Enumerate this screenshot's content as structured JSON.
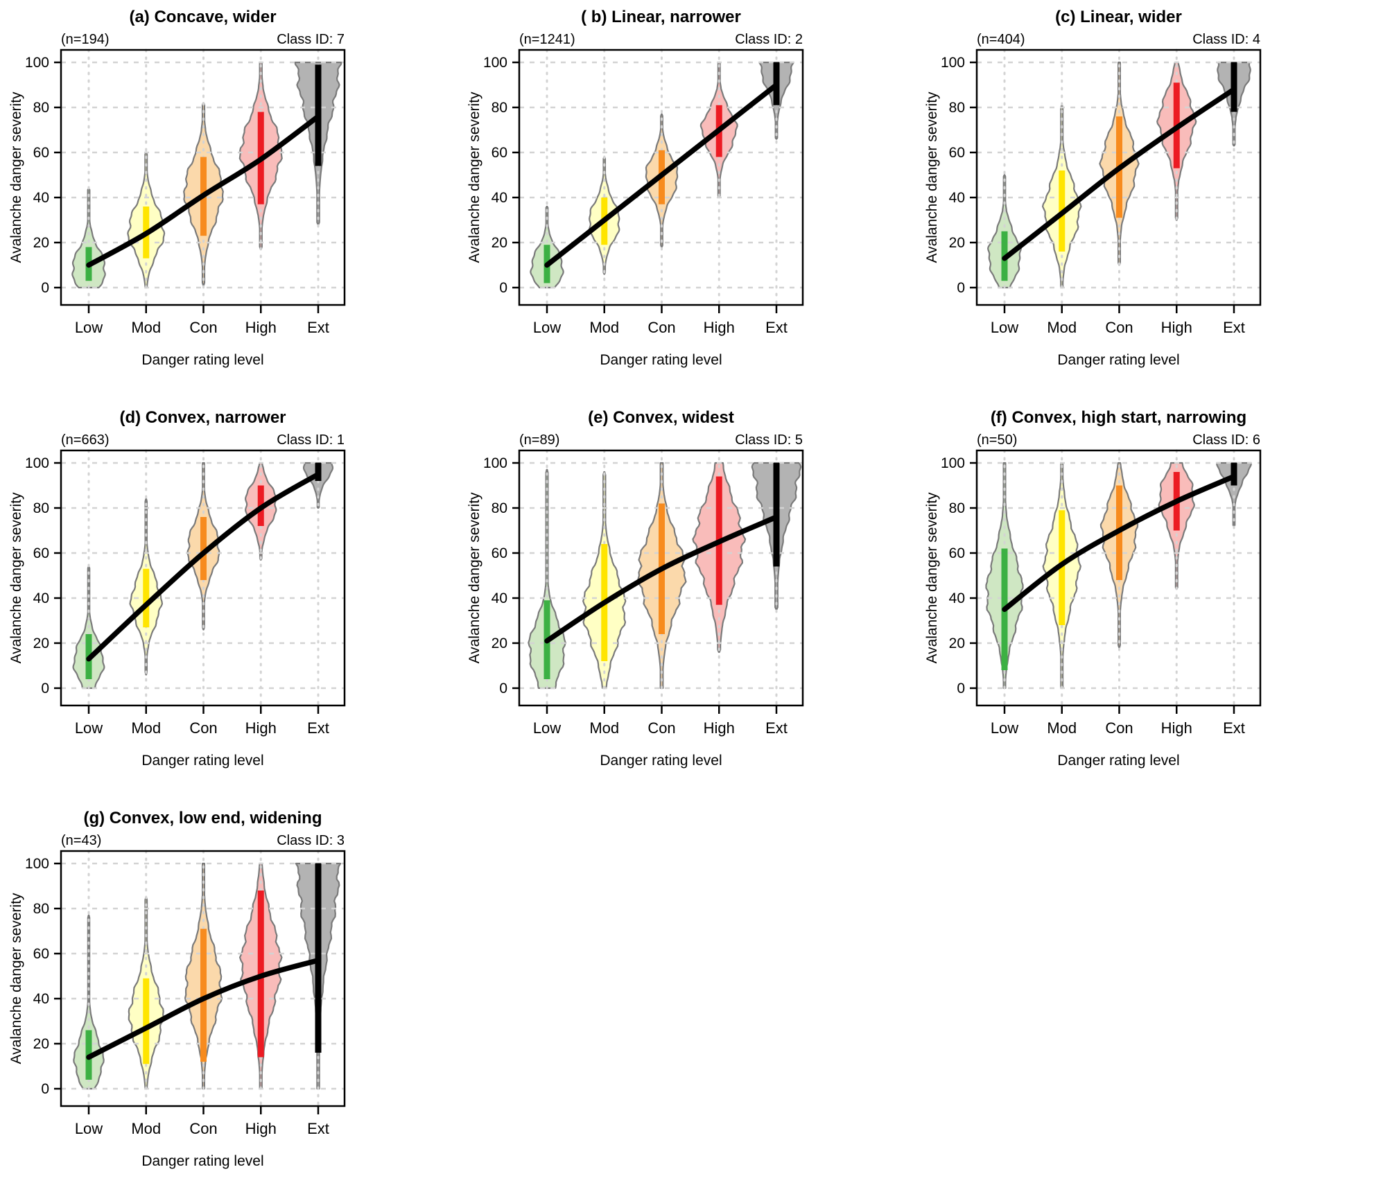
{
  "figure": {
    "x_axis_label": "Danger rating level",
    "y_axis_label": "Avalanche danger severity",
    "categories": [
      "Low",
      "Mod",
      "Con",
      "High",
      "Ext"
    ],
    "y_ticks": [
      0,
      20,
      40,
      60,
      80,
      100
    ],
    "colors": {
      "fills": [
        "#cfe7c3",
        "#ffffc4",
        "#fbd9ab",
        "#f9bcba",
        "#b3b3b3"
      ],
      "bars": [
        "#3cb043",
        "#ffe500",
        "#f78b1e",
        "#ec1b23",
        "#000000"
      ],
      "violin_border": "#7a7a7a",
      "grid": "#d3d3d3",
      "trend": "#000000",
      "box": "#000000",
      "text": "#000000"
    }
  },
  "chart_data": [
    {
      "type": "violin",
      "title": "(a) Concave, wider",
      "n_label": "(n=194)",
      "class_label": "Class ID: 7",
      "n": 194,
      "class_id": 7,
      "categories": [
        "Low",
        "Mod",
        "Con",
        "High",
        "Ext"
      ],
      "means": [
        10,
        24,
        41,
        57,
        76
      ],
      "bar_ranges": [
        [
          3,
          18
        ],
        [
          13,
          36
        ],
        [
          23,
          58
        ],
        [
          37,
          78
        ],
        [
          54,
          99
        ]
      ],
      "violins": [
        {
          "min": 0,
          "max": 44,
          "peak": 8,
          "sd_below": 8,
          "sd_above": 9,
          "width": 0.58
        },
        {
          "min": 0,
          "max": 60,
          "peak": 25,
          "sd_below": 10,
          "sd_above": 11,
          "width": 0.62
        },
        {
          "min": 1,
          "max": 82,
          "peak": 43,
          "sd_below": 14,
          "sd_above": 13,
          "width": 0.66
        },
        {
          "min": 17,
          "max": 100,
          "peak": 60,
          "sd_below": 14,
          "sd_above": 14,
          "width": 0.7
        },
        {
          "min": 28,
          "max": 100,
          "peak": 100,
          "sd_below": 24,
          "sd_above": 24,
          "width": 0.74
        }
      ]
    },
    {
      "type": "violin",
      "title": "( b) Linear, narrower",
      "n_label": "(n=1241)",
      "class_label": "Class ID: 2",
      "n": 1241,
      "class_id": 2,
      "categories": [
        "Low",
        "Mod",
        "Con",
        "High",
        "Ext"
      ],
      "means": [
        10,
        30,
        50,
        70,
        90
      ],
      "bar_ranges": [
        [
          2,
          19
        ],
        [
          19,
          40
        ],
        [
          37,
          61
        ],
        [
          58,
          81
        ],
        [
          81,
          100
        ]
      ],
      "violins": [
        {
          "min": 0,
          "max": 36,
          "peak": 9,
          "sd_below": 8,
          "sd_above": 8,
          "width": 0.56
        },
        {
          "min": 6,
          "max": 58,
          "peak": 29,
          "sd_below": 8,
          "sd_above": 9,
          "width": 0.54
        },
        {
          "min": 18,
          "max": 77,
          "peak": 49,
          "sd_below": 9,
          "sd_above": 9,
          "width": 0.56
        },
        {
          "min": 40,
          "max": 100,
          "peak": 70,
          "sd_below": 9,
          "sd_above": 9,
          "width": 0.6
        },
        {
          "min": 66,
          "max": 100,
          "peak": 100,
          "sd_below": 11,
          "sd_above": 11,
          "width": 0.58
        }
      ]
    },
    {
      "type": "violin",
      "title": "(c) Linear, wider",
      "n_label": "(n=404)",
      "class_label": "Class ID: 4",
      "n": 404,
      "class_id": 4,
      "categories": [
        "Low",
        "Mod",
        "Con",
        "High",
        "Ext"
      ],
      "means": [
        13,
        33,
        53,
        71,
        88
      ],
      "bar_ranges": [
        [
          3,
          25
        ],
        [
          16,
          52
        ],
        [
          31,
          76
        ],
        [
          53,
          91
        ],
        [
          78,
          100
        ]
      ],
      "violins": [
        {
          "min": 0,
          "max": 50,
          "peak": 14,
          "sd_below": 10,
          "sd_above": 10,
          "width": 0.56
        },
        {
          "min": 0,
          "max": 81,
          "peak": 34,
          "sd_below": 13,
          "sd_above": 13,
          "width": 0.62
        },
        {
          "min": 10,
          "max": 100,
          "peak": 55,
          "sd_below": 14,
          "sd_above": 13,
          "width": 0.62
        },
        {
          "min": 30,
          "max": 100,
          "peak": 74,
          "sd_below": 13,
          "sd_above": 12,
          "width": 0.62
        },
        {
          "min": 63,
          "max": 100,
          "peak": 100,
          "sd_below": 12,
          "sd_above": 12,
          "width": 0.6
        }
      ]
    },
    {
      "type": "violin",
      "title": "(d) Convex, narrower",
      "n_label": "(n=663)",
      "class_label": "Class ID: 1",
      "n": 663,
      "class_id": 1,
      "categories": [
        "Low",
        "Mod",
        "Con",
        "High",
        "Ext"
      ],
      "means": [
        13,
        37,
        60,
        80,
        95
      ],
      "bar_ranges": [
        [
          4,
          24
        ],
        [
          27,
          53
        ],
        [
          48,
          76
        ],
        [
          72,
          90
        ],
        [
          92,
          100
        ]
      ],
      "violins": [
        {
          "min": 0,
          "max": 54,
          "peak": 12,
          "sd_below": 9,
          "sd_above": 9,
          "width": 0.52
        },
        {
          "min": 6,
          "max": 84,
          "peak": 38,
          "sd_below": 10,
          "sd_above": 11,
          "width": 0.52
        },
        {
          "min": 26,
          "max": 100,
          "peak": 62,
          "sd_below": 10,
          "sd_above": 11,
          "width": 0.55
        },
        {
          "min": 57,
          "max": 100,
          "peak": 82,
          "sd_below": 9,
          "sd_above": 8,
          "width": 0.55
        },
        {
          "min": 80,
          "max": 100,
          "peak": 100,
          "sd_below": 7,
          "sd_above": 7,
          "width": 0.52
        }
      ]
    },
    {
      "type": "violin",
      "title": "(e) Convex, widest",
      "n_label": "(n=89)",
      "class_label": "Class ID: 5",
      "n": 89,
      "class_id": 5,
      "categories": [
        "Low",
        "Mod",
        "Con",
        "High",
        "Ext"
      ],
      "means": [
        21,
        38,
        53,
        65,
        76
      ],
      "bar_ranges": [
        [
          4,
          39
        ],
        [
          12,
          64
        ],
        [
          24,
          82
        ],
        [
          37,
          94
        ],
        [
          54,
          100
        ]
      ],
      "violins": [
        {
          "min": 0,
          "max": 97,
          "peak": 18,
          "sd_below": 14,
          "sd_above": 12,
          "width": 0.62
        },
        {
          "min": 0,
          "max": 96,
          "peak": 35,
          "sd_below": 16,
          "sd_above": 16,
          "width": 0.72
        },
        {
          "min": 0,
          "max": 100,
          "peak": 52,
          "sd_below": 18,
          "sd_above": 16,
          "width": 0.8
        },
        {
          "min": 16,
          "max": 100,
          "peak": 65,
          "sd_below": 19,
          "sd_above": 18,
          "width": 0.84
        },
        {
          "min": 35,
          "max": 100,
          "peak": 100,
          "sd_below": 22,
          "sd_above": 22,
          "width": 0.8
        }
      ]
    },
    {
      "type": "violin",
      "title": "(f) Convex, high start, narrowing",
      "n_label": "(n=50)",
      "class_label": "Class ID: 6",
      "n": 50,
      "class_id": 6,
      "categories": [
        "Low",
        "Mod",
        "Con",
        "High",
        "Ext"
      ],
      "means": [
        35,
        55,
        70,
        83,
        94
      ],
      "bar_ranges": [
        [
          8,
          62
        ],
        [
          28,
          79
        ],
        [
          48,
          90
        ],
        [
          70,
          96
        ],
        [
          90,
          100
        ]
      ],
      "violins": [
        {
          "min": 0,
          "max": 100,
          "peak": 42,
          "sd_below": 16,
          "sd_above": 17,
          "width": 0.62
        },
        {
          "min": 0,
          "max": 100,
          "peak": 55,
          "sd_below": 17,
          "sd_above": 16,
          "width": 0.6
        },
        {
          "min": 18,
          "max": 100,
          "peak": 70,
          "sd_below": 15,
          "sd_above": 13,
          "width": 0.6
        },
        {
          "min": 44,
          "max": 100,
          "peak": 85,
          "sd_below": 12,
          "sd_above": 10,
          "width": 0.6
        },
        {
          "min": 72,
          "max": 100,
          "peak": 100,
          "sd_below": 8,
          "sd_above": 8,
          "width": 0.55
        }
      ]
    },
    {
      "type": "violin",
      "title": "(g) Convex, low end, widening",
      "n_label": "(n=43)",
      "class_label": "Class ID: 3",
      "n": 43,
      "class_id": 3,
      "categories": [
        "Low",
        "Mod",
        "Con",
        "High",
        "Ext"
      ],
      "means": [
        14,
        27,
        40,
        50,
        57
      ],
      "bar_ranges": [
        [
          4,
          26
        ],
        [
          11,
          49
        ],
        [
          12,
          71
        ],
        [
          14,
          88
        ],
        [
          16,
          100
        ]
      ],
      "violins": [
        {
          "min": 0,
          "max": 77,
          "peak": 12,
          "sd_below": 9,
          "sd_above": 11,
          "width": 0.5
        },
        {
          "min": 0,
          "max": 85,
          "peak": 32,
          "sd_below": 13,
          "sd_above": 14,
          "width": 0.58
        },
        {
          "min": 0,
          "max": 100,
          "peak": 45,
          "sd_below": 16,
          "sd_above": 17,
          "width": 0.62
        },
        {
          "min": 0,
          "max": 100,
          "peak": 55,
          "sd_below": 20,
          "sd_above": 19,
          "width": 0.68
        },
        {
          "min": 0,
          "max": 100,
          "peak": 100,
          "sd_below": 32,
          "sd_above": 32,
          "width": 0.72
        }
      ]
    }
  ]
}
